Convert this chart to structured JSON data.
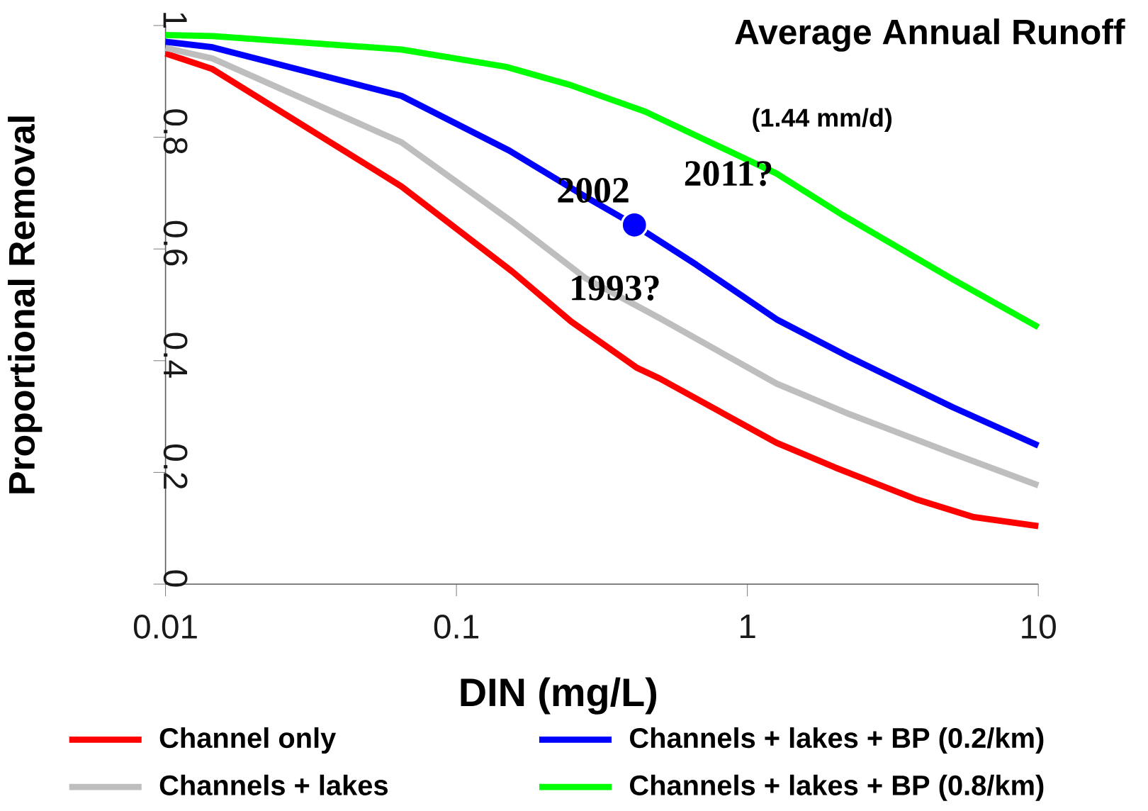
{
  "chart_data": {
    "type": "line",
    "title": "Average Annual Runoff",
    "subtitle": "(1.44 mm/d)",
    "xlabel": "DIN (mg/L)",
    "ylabel": "Proportional Removal",
    "log": "x",
    "xlim": [
      0.01,
      10
    ],
    "ylim": [
      0,
      1
    ],
    "xticks": [
      0.01,
      0.1,
      1,
      10
    ],
    "yticks": [
      0,
      0.2,
      0.4,
      0.6,
      0.8,
      1
    ],
    "grid": false,
    "legend": "bottom",
    "marker": "none",
    "line_style": "solid",
    "series": [
      {
        "name": "Channel only",
        "color": "#ff0000",
        "x": [
          0.01,
          0.0145,
          0.0647,
          0.156,
          0.248,
          0.418,
          0.5,
          1.26,
          2.0,
          3.8,
          6.0,
          10
        ],
        "values": [
          0.95,
          0.922,
          0.712,
          0.559,
          0.47,
          0.387,
          0.368,
          0.253,
          0.209,
          0.152,
          0.12,
          0.104
        ]
      },
      {
        "name": "Channels + lakes",
        "color": "#bebebe",
        "x": [
          0.01,
          0.0145,
          0.0647,
          0.156,
          0.279,
          0.5,
          1.26,
          2.25,
          5.07,
          10
        ],
        "values": [
          0.96,
          0.941,
          0.791,
          0.648,
          0.547,
          0.476,
          0.359,
          0.304,
          0.234,
          0.177
        ]
      },
      {
        "name": "Channels + lakes + BP (0.2/km)",
        "color": "#0000ff",
        "x": [
          0.01,
          0.0145,
          0.0647,
          0.152,
          0.279,
          0.409,
          0.667,
          1.26,
          2.25,
          5.07,
          10
        ],
        "values": [
          0.971,
          0.961,
          0.874,
          0.776,
          0.693,
          0.643,
          0.572,
          0.474,
          0.406,
          0.317,
          0.248
        ]
      },
      {
        "name": "Channels + lakes + BP (0.8/km)",
        "color": "#00ff00",
        "x": [
          0.01,
          0.0145,
          0.0647,
          0.148,
          0.248,
          0.445,
          1.26,
          2.12,
          5.07,
          10
        ],
        "values": [
          0.983,
          0.981,
          0.957,
          0.926,
          0.893,
          0.846,
          0.735,
          0.661,
          0.546,
          0.46
        ]
      },
      {
        "type": "scatter",
        "color": "#0000ff",
        "x": [
          0.409
        ],
        "values": [
          0.643
        ]
      }
    ],
    "annotations": [
      "2002",
      "2011?",
      "1993?"
    ]
  }
}
